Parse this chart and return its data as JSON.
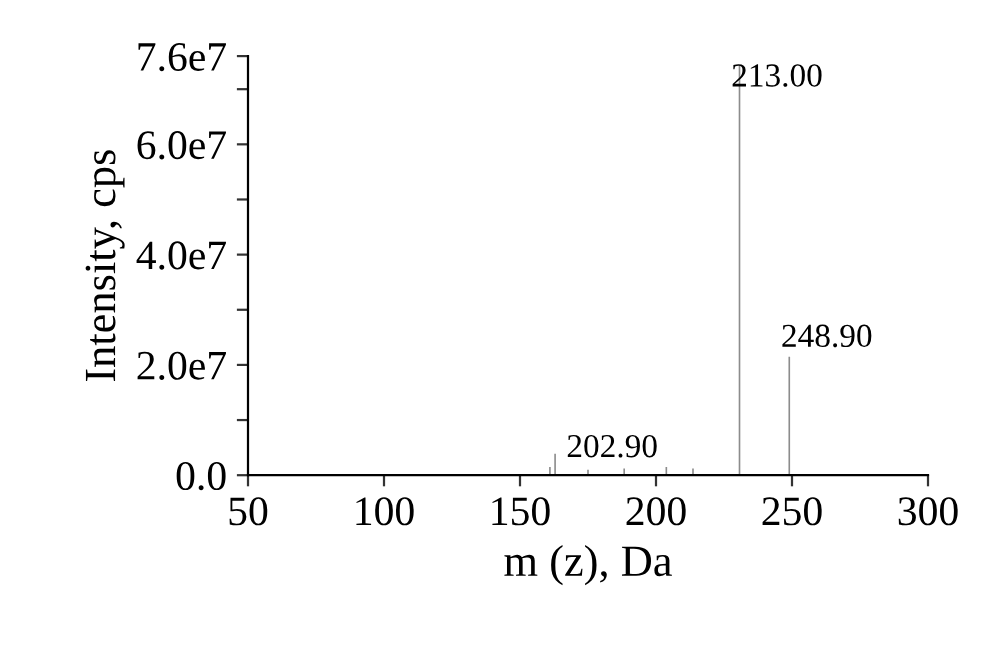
{
  "chart_data": {
    "type": "bar",
    "xlabel": "m (z), Da",
    "ylabel": "Intensity, cps",
    "x": [
      161,
      162.9,
      175,
      188.3,
      203.8,
      213.6,
      230.7,
      249
    ],
    "values": [
      1500000,
      3900000,
      1000000,
      1200000,
      1500000,
      1200000,
      74200000,
      21500000
    ],
    "color": "#8c8c8c",
    "xlim": [
      50,
      300
    ],
    "xticks": [
      50,
      100,
      150,
      200,
      250,
      300
    ],
    "ylim": [
      0,
      76000000
    ],
    "yticks": [
      {
        "value": 0,
        "label": "0.0"
      },
      {
        "value": 10000000,
        "label": null
      },
      {
        "value": 20000000,
        "label": "2.0e7"
      },
      {
        "value": 30000000,
        "label": null
      },
      {
        "value": 40000000,
        "label": "4.0e7"
      },
      {
        "value": 50000000,
        "label": null
      },
      {
        "value": 60000000,
        "label": "6.0e7"
      },
      {
        "value": 70000000,
        "label": null
      },
      {
        "value": 76000000,
        "label": "7.6e7"
      }
    ],
    "annotations": [
      {
        "text": "213.00",
        "x": 230.7,
        "y": 74200000
      },
      {
        "text": "248.90",
        "x": 249,
        "y": 21500000
      },
      {
        "text": "202.90",
        "x": 203.8,
        "y": 1500000
      }
    ],
    "grid": false
  }
}
